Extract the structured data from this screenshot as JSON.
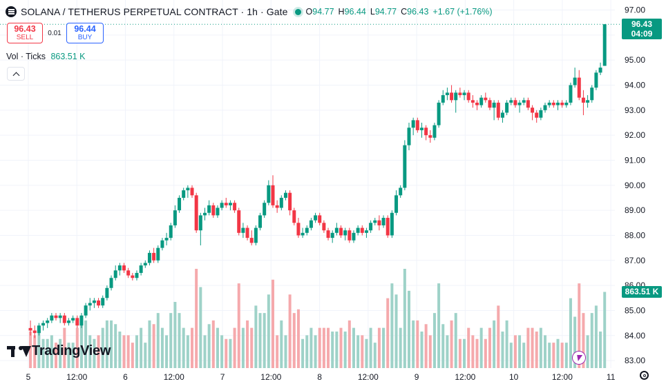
{
  "header": {
    "symbol_title": "SOLANA / TETHERUS PERPETUAL CONTRACT · 1h · Gate",
    "ohlc": [
      {
        "key": "O",
        "value": "94.77"
      },
      {
        "key": "H",
        "value": "96.44"
      },
      {
        "key": "L",
        "value": "94.77"
      },
      {
        "key": "C",
        "value": "96.43"
      },
      {
        "key": "",
        "value": "+1.67 (+1.76%)"
      }
    ]
  },
  "trade": {
    "sell_price": "96.43",
    "sell_label": "SELL",
    "spread": "0.01",
    "buy_price": "96.44",
    "buy_label": "BUY"
  },
  "volume_legend": {
    "label": "Vol · Ticks",
    "value": "863.51 K"
  },
  "price_axis": {
    "ticks": [
      "97.00",
      "96.00",
      "95.00",
      "94.00",
      "93.00",
      "92.00",
      "91.00",
      "90.00",
      "89.00",
      "88.00",
      "87.00",
      "86.00",
      "85.00",
      "84.00",
      "83.00"
    ],
    "last_price": "96.43",
    "countdown": "04:09",
    "volume_tag": "863.51 K"
  },
  "time_axis": {
    "labels": [
      "5",
      "12:00",
      "6",
      "12:00",
      "7",
      "12:00",
      "8",
      "12:00",
      "9",
      "12:00",
      "10",
      "12:00",
      "11"
    ]
  },
  "branding": {
    "logo_text": "TradingView"
  },
  "colors": {
    "up": "#089981",
    "down": "#f23645",
    "vol_up": "#9ed2c8",
    "vol_down": "#f5a9ac",
    "grid": "#f0f3fa"
  },
  "icons": [
    "menu-icon",
    "market-open-dot-icon",
    "chevron-up-icon",
    "lightning-icon",
    "settings-icon",
    "tradingview-logo-icon"
  ],
  "chart_data": {
    "type": "candlestick",
    "interval": "1h",
    "y_range": [
      82.7,
      97.4
    ],
    "x_range_hours": [
      -7,
      145
    ],
    "day_labels_at_hours": {
      "5": 0,
      "6": 24,
      "7": 48,
      "8": 72,
      "9": 96,
      "10": 120,
      "11": 144
    },
    "ohlc_sampled": [
      [
        84.3,
        84.6,
        84.0,
        84.2
      ],
      [
        84.2,
        84.4,
        83.9,
        84.1
      ],
      [
        84.1,
        84.5,
        84.0,
        84.4
      ],
      [
        84.4,
        84.6,
        84.2,
        84.5
      ],
      [
        84.5,
        84.7,
        84.3,
        84.6
      ],
      [
        84.6,
        84.9,
        84.5,
        84.8
      ],
      [
        84.8,
        84.9,
        84.6,
        84.7
      ],
      [
        84.7,
        84.9,
        84.5,
        84.8
      ],
      [
        84.8,
        84.9,
        84.4,
        84.5
      ],
      [
        84.5,
        84.7,
        84.4,
        84.6
      ],
      [
        84.6,
        84.8,
        84.5,
        84.7
      ],
      [
        84.7,
        84.8,
        84.3,
        84.4
      ],
      [
        84.4,
        84.9,
        84.3,
        84.8
      ],
      [
        84.8,
        85.3,
        84.7,
        85.2
      ],
      [
        85.2,
        85.5,
        85.0,
        85.3
      ],
      [
        85.3,
        85.5,
        85.1,
        85.4
      ],
      [
        85.4,
        85.5,
        85.1,
        85.2
      ],
      [
        85.2,
        85.6,
        85.1,
        85.5
      ],
      [
        85.5,
        86.0,
        85.4,
        85.9
      ],
      [
        85.9,
        86.4,
        85.8,
        86.3
      ],
      [
        86.3,
        86.8,
        86.2,
        86.6
      ],
      [
        86.6,
        86.9,
        86.4,
        86.8
      ],
      [
        86.8,
        86.9,
        86.5,
        86.6
      ],
      [
        86.6,
        86.7,
        86.3,
        86.4
      ],
      [
        86.4,
        86.5,
        86.2,
        86.3
      ],
      [
        86.3,
        86.6,
        86.2,
        86.5
      ],
      [
        86.5,
        86.9,
        86.4,
        86.8
      ],
      [
        86.8,
        87.0,
        86.7,
        86.9
      ],
      [
        86.9,
        87.4,
        86.8,
        87.3
      ],
      [
        87.3,
        87.5,
        86.9,
        87.0
      ],
      [
        87.0,
        87.6,
        86.9,
        87.5
      ],
      [
        87.5,
        87.9,
        87.4,
        87.8
      ],
      [
        87.8,
        88.1,
        87.6,
        87.9
      ],
      [
        87.9,
        88.5,
        87.8,
        88.4
      ],
      [
        88.4,
        89.2,
        88.3,
        89.0
      ],
      [
        89.0,
        89.6,
        88.9,
        89.5
      ],
      [
        89.5,
        89.9,
        89.4,
        89.8
      ],
      [
        89.8,
        90.0,
        89.5,
        89.9
      ],
      [
        89.9,
        90.0,
        89.5,
        89.6
      ],
      [
        89.6,
        89.7,
        88.1,
        88.2
      ],
      [
        88.2,
        88.9,
        87.6,
        88.8
      ],
      [
        88.8,
        89.1,
        88.6,
        88.9
      ],
      [
        88.9,
        89.4,
        88.8,
        89.2
      ],
      [
        89.2,
        89.3,
        88.7,
        88.8
      ],
      [
        88.8,
        89.2,
        88.7,
        89.1
      ],
      [
        89.1,
        89.4,
        89.0,
        89.3
      ],
      [
        89.3,
        89.5,
        89.1,
        89.2
      ],
      [
        89.2,
        89.4,
        89.0,
        89.3
      ],
      [
        89.3,
        89.4,
        88.9,
        89.0
      ],
      [
        89.0,
        89.1,
        88.0,
        88.1
      ],
      [
        88.1,
        88.5,
        87.9,
        88.3
      ],
      [
        88.3,
        88.4,
        87.8,
        87.9
      ],
      [
        87.9,
        88.2,
        87.6,
        87.7
      ],
      [
        87.7,
        88.4,
        87.6,
        88.3
      ],
      [
        88.3,
        88.9,
        88.2,
        88.8
      ],
      [
        88.8,
        89.4,
        88.7,
        89.3
      ],
      [
        89.3,
        90.2,
        89.2,
        90.0
      ],
      [
        90.0,
        90.4,
        89.1,
        89.2
      ],
      [
        89.2,
        89.4,
        88.9,
        89.1
      ],
      [
        89.1,
        89.6,
        89.0,
        89.5
      ],
      [
        89.5,
        89.8,
        89.4,
        89.7
      ],
      [
        89.7,
        89.8,
        88.8,
        89.0
      ],
      [
        89.0,
        89.1,
        88.4,
        88.5
      ],
      [
        88.5,
        88.7,
        87.9,
        88.0
      ],
      [
        88.0,
        88.3,
        87.9,
        88.1
      ],
      [
        88.1,
        88.4,
        88.0,
        88.3
      ],
      [
        88.3,
        88.7,
        88.2,
        88.6
      ],
      [
        88.6,
        88.9,
        88.5,
        88.8
      ],
      [
        88.8,
        88.9,
        88.4,
        88.5
      ],
      [
        88.5,
        88.6,
        88.1,
        88.2
      ],
      [
        88.2,
        88.3,
        87.8,
        87.9
      ],
      [
        87.9,
        88.2,
        87.7,
        88.1
      ],
      [
        88.1,
        88.5,
        88.0,
        88.3
      ],
      [
        88.3,
        88.4,
        87.9,
        88.0
      ],
      [
        88.0,
        88.3,
        87.8,
        88.2
      ],
      [
        88.2,
        88.3,
        87.7,
        87.8
      ],
      [
        87.8,
        88.2,
        87.7,
        88.1
      ],
      [
        88.1,
        88.4,
        88.0,
        88.3
      ],
      [
        88.3,
        88.4,
        88.0,
        88.1
      ],
      [
        88.1,
        88.3,
        87.9,
        88.2
      ],
      [
        88.2,
        88.6,
        88.1,
        88.5
      ],
      [
        88.5,
        88.7,
        88.4,
        88.6
      ],
      [
        88.6,
        88.8,
        88.2,
        88.4
      ],
      [
        88.4,
        88.8,
        88.3,
        88.7
      ],
      [
        88.7,
        88.8,
        87.9,
        88.0
      ],
      [
        88.0,
        89.0,
        87.9,
        88.9
      ],
      [
        88.9,
        89.8,
        88.8,
        89.6
      ],
      [
        89.6,
        90.0,
        89.5,
        89.9
      ],
      [
        89.9,
        91.8,
        89.8,
        91.6
      ],
      [
        91.6,
        92.5,
        91.4,
        92.3
      ],
      [
        92.3,
        92.7,
        92.0,
        92.6
      ],
      [
        92.6,
        92.7,
        92.1,
        92.2
      ],
      [
        92.2,
        92.5,
        91.9,
        92.3
      ],
      [
        92.3,
        92.4,
        91.8,
        92.0
      ],
      [
        92.0,
        92.2,
        91.7,
        91.9
      ],
      [
        91.9,
        92.5,
        91.8,
        92.4
      ],
      [
        92.4,
        93.4,
        92.3,
        93.3
      ],
      [
        93.3,
        93.8,
        93.2,
        93.6
      ],
      [
        93.6,
        93.9,
        93.4,
        93.7
      ],
      [
        93.7,
        94.0,
        93.3,
        93.4
      ],
      [
        93.4,
        93.8,
        92.9,
        93.7
      ],
      [
        93.7,
        93.9,
        93.5,
        93.6
      ],
      [
        93.6,
        93.8,
        93.4,
        93.7
      ],
      [
        93.7,
        93.8,
        93.3,
        93.4
      ],
      [
        93.4,
        93.6,
        93.1,
        93.3
      ],
      [
        93.3,
        93.4,
        93.0,
        93.2
      ],
      [
        93.2,
        93.6,
        93.1,
        93.5
      ],
      [
        93.5,
        93.7,
        93.3,
        93.4
      ],
      [
        93.4,
        93.5,
        93.0,
        93.1
      ],
      [
        93.1,
        93.4,
        92.6,
        93.3
      ],
      [
        93.3,
        93.4,
        92.6,
        92.7
      ],
      [
        92.7,
        93.0,
        92.5,
        92.9
      ],
      [
        92.9,
        93.4,
        92.8,
        93.3
      ],
      [
        93.3,
        93.5,
        93.2,
        93.4
      ],
      [
        93.4,
        93.5,
        93.1,
        93.2
      ],
      [
        93.2,
        93.4,
        92.9,
        93.3
      ],
      [
        93.3,
        93.5,
        93.2,
        93.4
      ],
      [
        93.4,
        93.5,
        93.0,
        93.1
      ],
      [
        93.1,
        93.2,
        92.6,
        92.9
      ],
      [
        92.9,
        93.0,
        92.5,
        92.7
      ],
      [
        92.7,
        93.1,
        92.6,
        93.0
      ],
      [
        93.0,
        93.3,
        92.9,
        93.2
      ],
      [
        93.2,
        93.4,
        93.1,
        93.3
      ],
      [
        93.3,
        93.4,
        93.1,
        93.2
      ],
      [
        93.2,
        93.4,
        93.0,
        93.3
      ],
      [
        93.3,
        93.4,
        93.1,
        93.2
      ],
      [
        93.2,
        93.4,
        93.1,
        93.3
      ],
      [
        93.3,
        94.1,
        93.2,
        94.0
      ],
      [
        94.0,
        94.7,
        93.9,
        94.3
      ],
      [
        94.3,
        94.6,
        93.4,
        93.5
      ],
      [
        93.5,
        93.8,
        92.8,
        93.3
      ],
      [
        93.3,
        93.6,
        93.1,
        93.4
      ],
      [
        93.4,
        94.0,
        93.3,
        93.9
      ],
      [
        93.9,
        94.6,
        93.8,
        94.5
      ],
      [
        94.5,
        94.9,
        94.4,
        94.7
      ],
      [
        94.77,
        96.44,
        94.77,
        96.43
      ]
    ],
    "volume_range_k": [
      0,
      1250
    ],
    "last_volume_k": 863.51
  }
}
